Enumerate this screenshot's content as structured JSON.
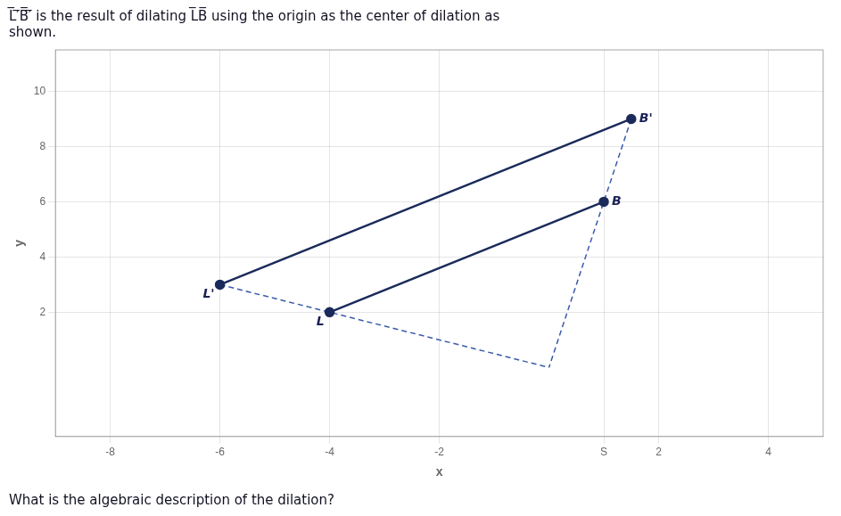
{
  "chart_data": {
    "type": "line",
    "title": [
      "L̅′̅B̅′̅ is the result of dilating L̅B̅ using the origin as the center of dilation as",
      "shown."
    ],
    "subtitle": "What is the algebraic description of the dilation?",
    "xlabel": "x",
    "ylabel": "y",
    "xlim": [
      -9,
      5
    ],
    "ylim": [
      -2.5,
      11.5
    ],
    "xticks": [
      -8,
      -6,
      -4,
      -2,
      {
        "value": 1,
        "label": "S"
      },
      2,
      4
    ],
    "yticks": [
      2,
      4,
      6,
      8,
      10
    ],
    "grid": true,
    "series": [
      {
        "x": [
          -6,
          1.5
        ],
        "values": [
          3,
          9
        ],
        "color": "#1a2a5a",
        "line_style": "solid",
        "marker": "circle"
      },
      {
        "x": [
          -4,
          1
        ],
        "values": [
          2,
          6
        ],
        "color": "#1a2a5a",
        "line_style": "solid",
        "marker": "circle"
      },
      {
        "x": [
          1.5,
          0.0
        ],
        "values": [
          9,
          0.0
        ],
        "color": "#3a5aaa",
        "line_style": "dashed",
        "marker": "none"
      },
      {
        "x": [
          -6,
          0.0
        ],
        "values": [
          3,
          0.0
        ],
        "color": "#3a5aaa",
        "line_style": "dashed",
        "marker": "none"
      }
    ],
    "annotations": [
      {
        "x": -6,
        "y": 3,
        "text": "L'"
      },
      {
        "x": 1.5,
        "y": 9,
        "text": "B'"
      },
      {
        "x": -4,
        "y": 2,
        "text": "L"
      },
      {
        "x": 1,
        "y": 6,
        "text": "B"
      }
    ]
  }
}
